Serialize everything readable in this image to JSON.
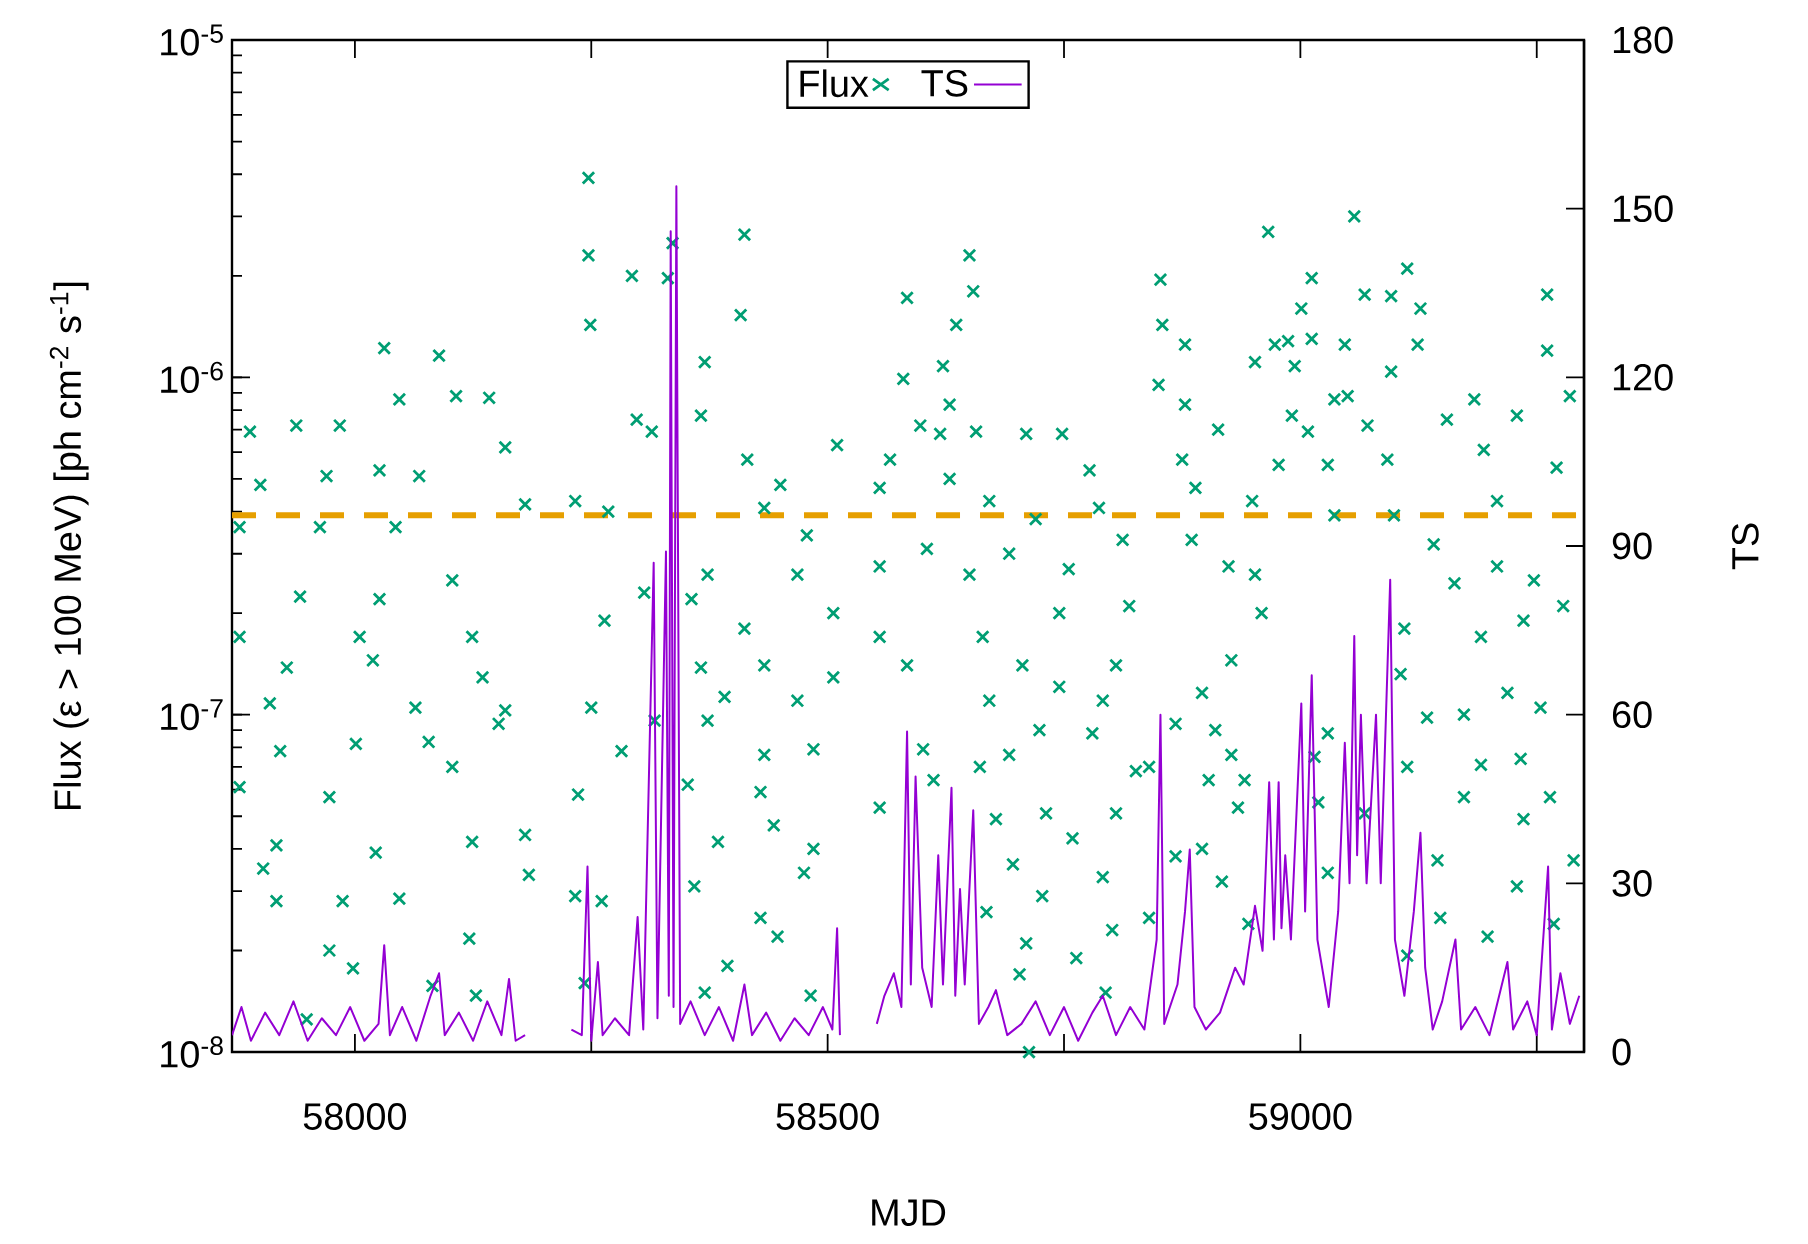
{
  "chart_data": {
    "type": "scatter",
    "xlabel": "MJD",
    "ylabel": "Flux (ε > 100 MeV) [ph cm$^{-2}$ s$^{-1}$]",
    "y2label": "TS",
    "xlim": [
      57870,
      59300
    ],
    "xticks": [
      58000,
      {
        "value": 58250,
        "label": null
      },
      58500,
      {
        "value": 58750,
        "label": null
      },
      59000,
      {
        "value": 59250,
        "label": null
      }
    ],
    "ylim": [
      1e-08,
      1e-05
    ],
    "yticks": [
      {
        "value": 1e-08,
        "label": "10$^{-8}$"
      },
      {
        "value": 1e-07,
        "label": "10$^{-7}$"
      },
      {
        "value": 1e-06,
        "label": "10$^{-6}$"
      },
      {
        "value": 1e-05,
        "label": "10$^{-5}$"
      }
    ],
    "y2lim": [
      0,
      180
    ],
    "y2ticks": [
      0,
      30,
      60,
      90,
      120,
      150,
      180
    ],
    "log": "y",
    "legend": "top",
    "ref_lines": [
      {
        "axis": "y",
        "value": 3.9e-07,
        "color": "#e69f00",
        "line_style": "dashed"
      }
    ],
    "series": [
      {
        "name": "Flux",
        "marker": "cross",
        "color": "#009e73",
        "x": [
          57889,
          57938,
          58031,
          58089,
          58107,
          58047,
          57984,
          58142,
          58159,
          57900,
          57970,
          58026,
          58068,
          58180,
          57878,
          57963,
          58043,
          57942,
          58026,
          58103,
          57878,
          58005,
          58124,
          57928,
          58019,
          58135,
          57910,
          58064,
          58159,
          57878,
          57921,
          58001,
          58078,
          58152,
          57973,
          58103,
          58180,
          57917,
          58022,
          58124,
          57903,
          58047,
          58184,
          57917,
          57987,
          57973,
          57998,
          58121,
          57949,
          58128,
          58082,
          58233,
          58247,
          58247,
          58249,
          58293,
          58331,
          58336,
          58314,
          58298,
          58306,
          58264,
          58250,
          58282,
          58236,
          58233,
          58261,
          58317,
          58243,
          58268,
          58412,
          58408,
          58370,
          58366,
          58415,
          58450,
          58510,
          58433,
          58478,
          58373,
          58468,
          58356,
          58412,
          58506,
          58366,
          58433,
          58506,
          58391,
          58468,
          58373,
          58433,
          58485,
          58352,
          58429,
          58443,
          58384,
          58485,
          58475,
          58359,
          58429,
          58447,
          58394,
          58482,
          58370,
          58584,
          58580,
          58598,
          58566,
          58555,
          58622,
          58636,
          58650,
          58654,
          58629,
          58657,
          58619,
          58629,
          58555,
          58605,
          58650,
          58555,
          58584,
          58601,
          58555,
          58612,
          58664,
          58661,
          58671,
          58710,
          58748,
          58777,
          58787,
          58720,
          58812,
          58692,
          58755,
          58745,
          58819,
          58706,
          58805,
          58745,
          58791,
          58671,
          58724,
          58780,
          58692,
          58826,
          58678,
          58731,
          58805,
          58696,
          58759,
          58791,
          58668,
          58727,
          58710,
          58763,
          58801,
          58703,
          58794,
          58713,
          58852,
          58854,
          58850,
          58878,
          58878,
          58913,
          58875,
          58889,
          58885,
          58924,
          58952,
          58949,
          58977,
          58952,
          58973,
          58987,
          59001,
          58994,
          59012,
          58991,
          59008,
          58966,
          59012,
          59036,
          59029,
          59050,
          59047,
          59057,
          59068,
          59096,
          59113,
          59127,
          59124,
          59096,
          59071,
          59092,
          59036,
          59099,
          59141,
          59155,
          59184,
          59194,
          59208,
          59229,
          59261,
          59261,
          59285,
          59271,
          59208,
          59247,
          59278,
          59236,
          59110,
          59191,
          59163,
          59106,
          58927,
          58959,
          58896,
          58868,
          58910,
          58927,
          59015,
          59029,
          59134,
          59173,
          59219,
          59254,
          58840,
          58903,
          58941,
          59113,
          59191,
          59233,
          59264,
          58868,
          58896,
          58934,
          59019,
          59068,
          59145,
          59173,
          59236,
          59289,
          58840,
          58917,
          58945,
          59029,
          59148,
          59198,
          59229,
          59268,
          59113
        ],
        "values": [
          6.9e-07,
          7.2e-07,
          1.22e-06,
          1.16e-06,
          8.8e-07,
          8.6e-07,
          7.2e-07,
          8.7e-07,
          6.2e-07,
          4.8e-07,
          5.1e-07,
          5.3e-07,
          5.1e-07,
          4.2e-07,
          3.6e-07,
          3.6e-07,
          3.6e-07,
          2.24e-07,
          2.2e-07,
          2.5e-07,
          1.7e-07,
          1.7e-07,
          1.7e-07,
          1.38e-07,
          1.45e-07,
          1.29e-07,
          1.08e-07,
          1.05e-07,
          1.03e-07,
          6.1e-08,
          7.8e-08,
          8.2e-08,
          8.3e-08,
          9.4e-08,
          5.7e-08,
          7e-08,
          4.4e-08,
          4.1e-08,
          3.9e-08,
          4.2e-08,
          3.5e-08,
          2.85e-08,
          3.35e-08,
          2.8e-08,
          2.8e-08,
          2e-08,
          1.77e-08,
          2.17e-08,
          1.25e-08,
          1.47e-08,
          1.57e-08,
          4.3e-07,
          3.9e-06,
          2.3e-06,
          1.43e-06,
          2e-06,
          1.97e-06,
          2.5e-06,
          6.9e-07,
          7.5e-07,
          2.3e-07,
          1.9e-07,
          1.05e-07,
          7.8e-08,
          5.8e-08,
          2.9e-08,
          2.8e-08,
          9.6e-08,
          1.6e-08,
          4e-07,
          2.65e-06,
          1.53e-06,
          1.11e-06,
          7.7e-07,
          5.7e-07,
          4.8e-07,
          6.3e-07,
          4.1e-07,
          3.4e-07,
          2.6e-07,
          2.6e-07,
          2.2e-07,
          1.8e-07,
          2e-07,
          1.38e-07,
          1.4e-07,
          1.29e-07,
          1.13e-07,
          1.1e-07,
          9.6e-08,
          7.6e-08,
          7.9e-08,
          6.2e-08,
          5.9e-08,
          4.7e-08,
          4.2e-08,
          4e-08,
          3.4e-08,
          3.1e-08,
          2.5e-08,
          2.2e-08,
          1.8e-08,
          1.47e-08,
          1.5e-08,
          1.72e-06,
          9.9e-07,
          7.2e-07,
          5.7e-07,
          4.7e-07,
          1.08e-06,
          1.43e-06,
          2.3e-06,
          1.8e-06,
          8.3e-07,
          6.9e-07,
          6.8e-07,
          5e-07,
          2.75e-07,
          3.1e-07,
          2.6e-07,
          1.7e-07,
          1.4e-07,
          7.9e-08,
          5.3e-08,
          6.4e-08,
          1.7e-07,
          7e-08,
          4.3e-07,
          6.8e-07,
          6.8e-07,
          5.3e-07,
          4.1e-07,
          3.8e-07,
          3.3e-07,
          3e-07,
          2.7e-07,
          2e-07,
          2.1e-07,
          1.4e-07,
          1.4e-07,
          1.21e-07,
          1.1e-07,
          1.1e-07,
          9e-08,
          8.8e-08,
          7.6e-08,
          6.8e-08,
          4.9e-08,
          5.1e-08,
          5.1e-08,
          3.6e-08,
          4.3e-08,
          3.3e-08,
          2.6e-08,
          2.9e-08,
          2.1e-08,
          1.9e-08,
          2.3e-08,
          1.7e-08,
          1.5e-08,
          1e-08,
          1.95e-06,
          1.43e-06,
          9.5e-07,
          1.25e-06,
          8.3e-07,
          7e-07,
          5.7e-07,
          4.7e-07,
          3.3e-07,
          2.75e-07,
          2.6e-07,
          4.3e-07,
          5.5e-07,
          1.11e-06,
          1.25e-06,
          1.28e-06,
          1.6e-06,
          1.08e-06,
          1.3e-06,
          7.7e-07,
          6.9e-07,
          2.7e-06,
          1.97e-06,
          8.6e-07,
          5.5e-07,
          8.8e-07,
          1.25e-06,
          3e-06,
          1.76e-06,
          1.74e-06,
          2.1e-06,
          1.6e-06,
          1.25e-06,
          1.04e-06,
          7.2e-07,
          5.7e-07,
          3.9e-07,
          3.9e-07,
          3.2e-07,
          7.5e-07,
          8.6e-07,
          6.1e-07,
          4.3e-07,
          7.7e-07,
          1.76e-06,
          1.2e-06,
          8.8e-07,
          5.4e-07,
          2.75e-07,
          2.5e-07,
          2.1e-07,
          1.9e-07,
          1.8e-07,
          1.7e-07,
          2.45e-07,
          1.32e-07,
          1.45e-07,
          2e-07,
          1.16e-07,
          9.4e-08,
          9e-08,
          7.6e-08,
          7.5e-08,
          8.8e-08,
          9.8e-08,
          1e-07,
          1.16e-07,
          1.05e-07,
          7e-08,
          6.4e-08,
          6.4e-08,
          7e-08,
          7.1e-08,
          7.4e-08,
          5.7e-08,
          3.8e-08,
          4e-08,
          5.3e-08,
          5.5e-08,
          5.1e-08,
          3.7e-08,
          5.7e-08,
          4.9e-08,
          3.7e-08,
          2.5e-08,
          3.2e-08,
          2.4e-08,
          3.4e-08,
          2.5e-08,
          2.2e-08,
          3.1e-08,
          2.4e-08,
          1.93e-08
        ]
      },
      {
        "name": "TS",
        "type": "line",
        "axis": "y2",
        "marker": "none",
        "color": "#9400d3",
        "x": [
          57870,
          57880,
          57890,
          57905,
          57920,
          57935,
          57950,
          57965,
          57980,
          57995,
          58010,
          58025,
          58031,
          58037,
          58050,
          58065,
          58080,
          58089,
          58095,
          58110,
          58125,
          58140,
          58155,
          58163,
          58170,
          58180,
          58200,
          58229,
          58240,
          58246,
          58250,
          58257,
          58262,
          58275,
          58290,
          58299,
          58305,
          58316,
          58320,
          58329,
          58332,
          58334,
          58337,
          58340,
          58344,
          58355,
          58370,
          58385,
          58400,
          58412,
          58420,
          58435,
          58450,
          58465,
          58480,
          58495,
          58505,
          58510,
          58513,
          58530,
          58552,
          58560,
          58570,
          58578,
          58584,
          58588,
          58593,
          58600,
          58610,
          58617,
          58622,
          58631,
          58635,
          58640,
          58645,
          58654,
          58660,
          58670,
          58678,
          58690,
          58705,
          58720,
          58735,
          58750,
          58765,
          58780,
          58791,
          58805,
          58820,
          58835,
          58848,
          58852,
          58856,
          58870,
          58878,
          58883,
          58888,
          58900,
          58915,
          58931,
          58940,
          58952,
          58960,
          58967,
          58972,
          58977,
          58980,
          58984,
          58990,
          59001,
          59005,
          59012,
          59018,
          59030,
          59040,
          59047,
          59052,
          59057,
          59060,
          59064,
          59070,
          59080,
          59085,
          59095,
          59100,
          59110,
          59120,
          59127,
          59132,
          59140,
          59150,
          59164,
          59170,
          59185,
          59200,
          59219,
          59225,
          59240,
          59250,
          59262,
          59266,
          59275,
          59285,
          59295
        ],
        "values": [
          3,
          8,
          2,
          7,
          3,
          9,
          2,
          6,
          3,
          8,
          2,
          5,
          19,
          3,
          8,
          2,
          10,
          14,
          3,
          7,
          2,
          9,
          3,
          13,
          2,
          3,
          null,
          4,
          3,
          33,
          2,
          16,
          3,
          6,
          3,
          24,
          4,
          87,
          6,
          89,
          10,
          146,
          8,
          154,
          5,
          9,
          3,
          8,
          2,
          12,
          3,
          7,
          2,
          6,
          3,
          8,
          4,
          22,
          3,
          null,
          5,
          10,
          14,
          8,
          57,
          12,
          49,
          15,
          8,
          35,
          12,
          47,
          10,
          29,
          12,
          43,
          5,
          8,
          11,
          3,
          5,
          9,
          3,
          8,
          2,
          7,
          10,
          3,
          8,
          4,
          20,
          60,
          5,
          12,
          25,
          36,
          8,
          4,
          7,
          15,
          12,
          26,
          18,
          48,
          20,
          48,
          22,
          35,
          20,
          62,
          25,
          67,
          20,
          8,
          25,
          55,
          30,
          74,
          35,
          60,
          30,
          60,
          30,
          84,
          20,
          10,
          25,
          39,
          15,
          4,
          9,
          20,
          4,
          8,
          3,
          16,
          4,
          9,
          3,
          33,
          4,
          14,
          5,
          10
        ]
      }
    ]
  }
}
